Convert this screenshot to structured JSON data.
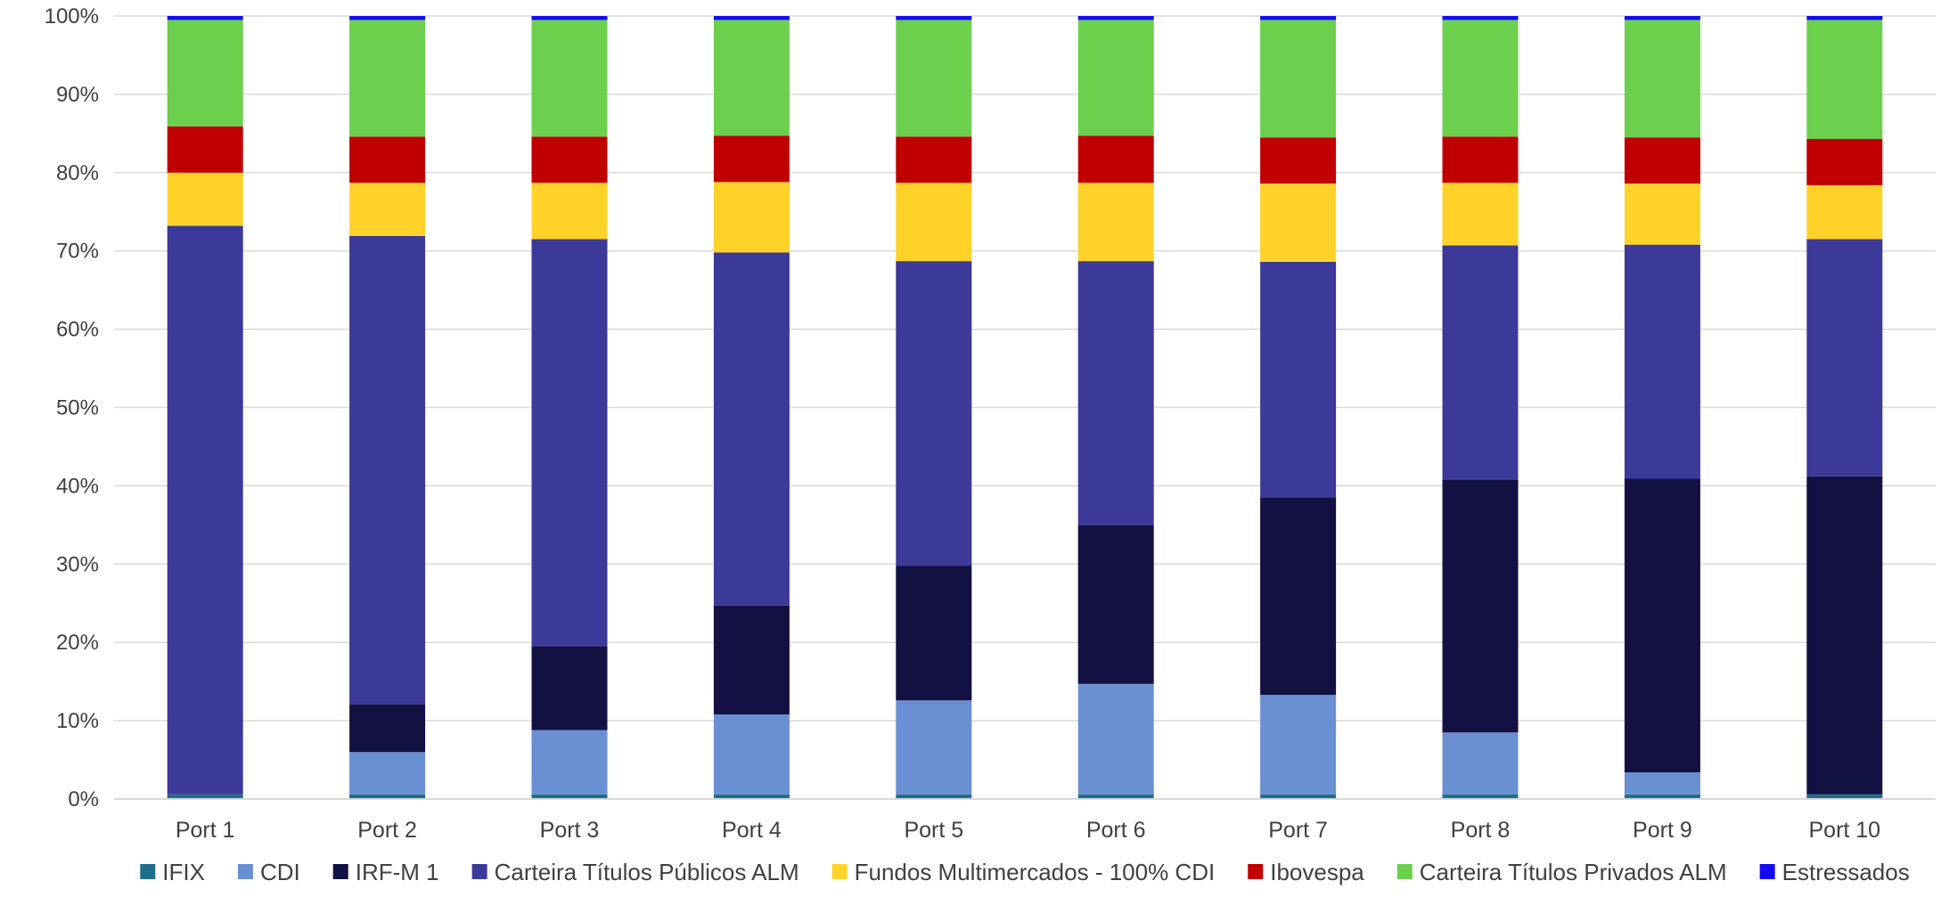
{
  "chart_data": {
    "type": "bar",
    "stacked": true,
    "normalized": true,
    "categories": [
      "Port 1",
      "Port 2",
      "Port 3",
      "Port 4",
      "Port 5",
      "Port 6",
      "Port 7",
      "Port 8",
      "Port 9",
      "Port 10"
    ],
    "ylim": [
      0,
      100
    ],
    "y_ticks": [
      0,
      10,
      20,
      30,
      40,
      50,
      60,
      70,
      80,
      90,
      100
    ],
    "y_tick_labels": [
      "0%",
      "10%",
      "20%",
      "30%",
      "40%",
      "50%",
      "60%",
      "70%",
      "80%",
      "90%",
      "100%"
    ],
    "grid": true,
    "legend_position": "bottom",
    "series": [
      {
        "name": "IFIX",
        "color": "#1F6E8C",
        "values": [
          0.6,
          0.6,
          0.6,
          0.6,
          0.6,
          0.6,
          0.6,
          0.6,
          0.6,
          0.6
        ]
      },
      {
        "name": "CDI",
        "color": "#6A8FD2",
        "values": [
          0.0,
          5.4,
          8.2,
          10.2,
          12.0,
          14.1,
          12.7,
          7.9,
          2.8,
          0.0
        ]
      },
      {
        "name": "IRF-M 1",
        "color": "#131042",
        "values": [
          0.0,
          6.1,
          10.7,
          13.9,
          17.2,
          20.3,
          25.2,
          32.3,
          37.5,
          40.6
        ]
      },
      {
        "name": "Carteira Títulos Públicos ALM",
        "color": "#3B3A98",
        "values": [
          72.6,
          59.8,
          52.0,
          45.1,
          38.9,
          33.7,
          30.1,
          29.9,
          29.9,
          30.3
        ]
      },
      {
        "name": "Fundos Multimercados - 100% CDI",
        "color": "#FFD22A",
        "values": [
          6.8,
          6.8,
          7.2,
          9.0,
          10.0,
          10.0,
          10.0,
          8.0,
          7.8,
          6.9
        ]
      },
      {
        "name": "Ibovespa",
        "color": "#C00000",
        "values": [
          5.9,
          5.9,
          5.9,
          5.9,
          5.9,
          6.0,
          5.9,
          5.9,
          5.9,
          5.9
        ]
      },
      {
        "name": "Carteira Títulos Privados ALM",
        "color": "#6CD04E",
        "values": [
          13.6,
          14.9,
          14.9,
          14.8,
          14.9,
          14.8,
          15.0,
          14.9,
          15.0,
          15.2
        ]
      },
      {
        "name": "Estressados",
        "color": "#1409F0",
        "values": [
          0.5,
          0.5,
          0.5,
          0.5,
          0.5,
          0.5,
          0.5,
          0.5,
          0.5,
          0.5
        ]
      }
    ]
  }
}
